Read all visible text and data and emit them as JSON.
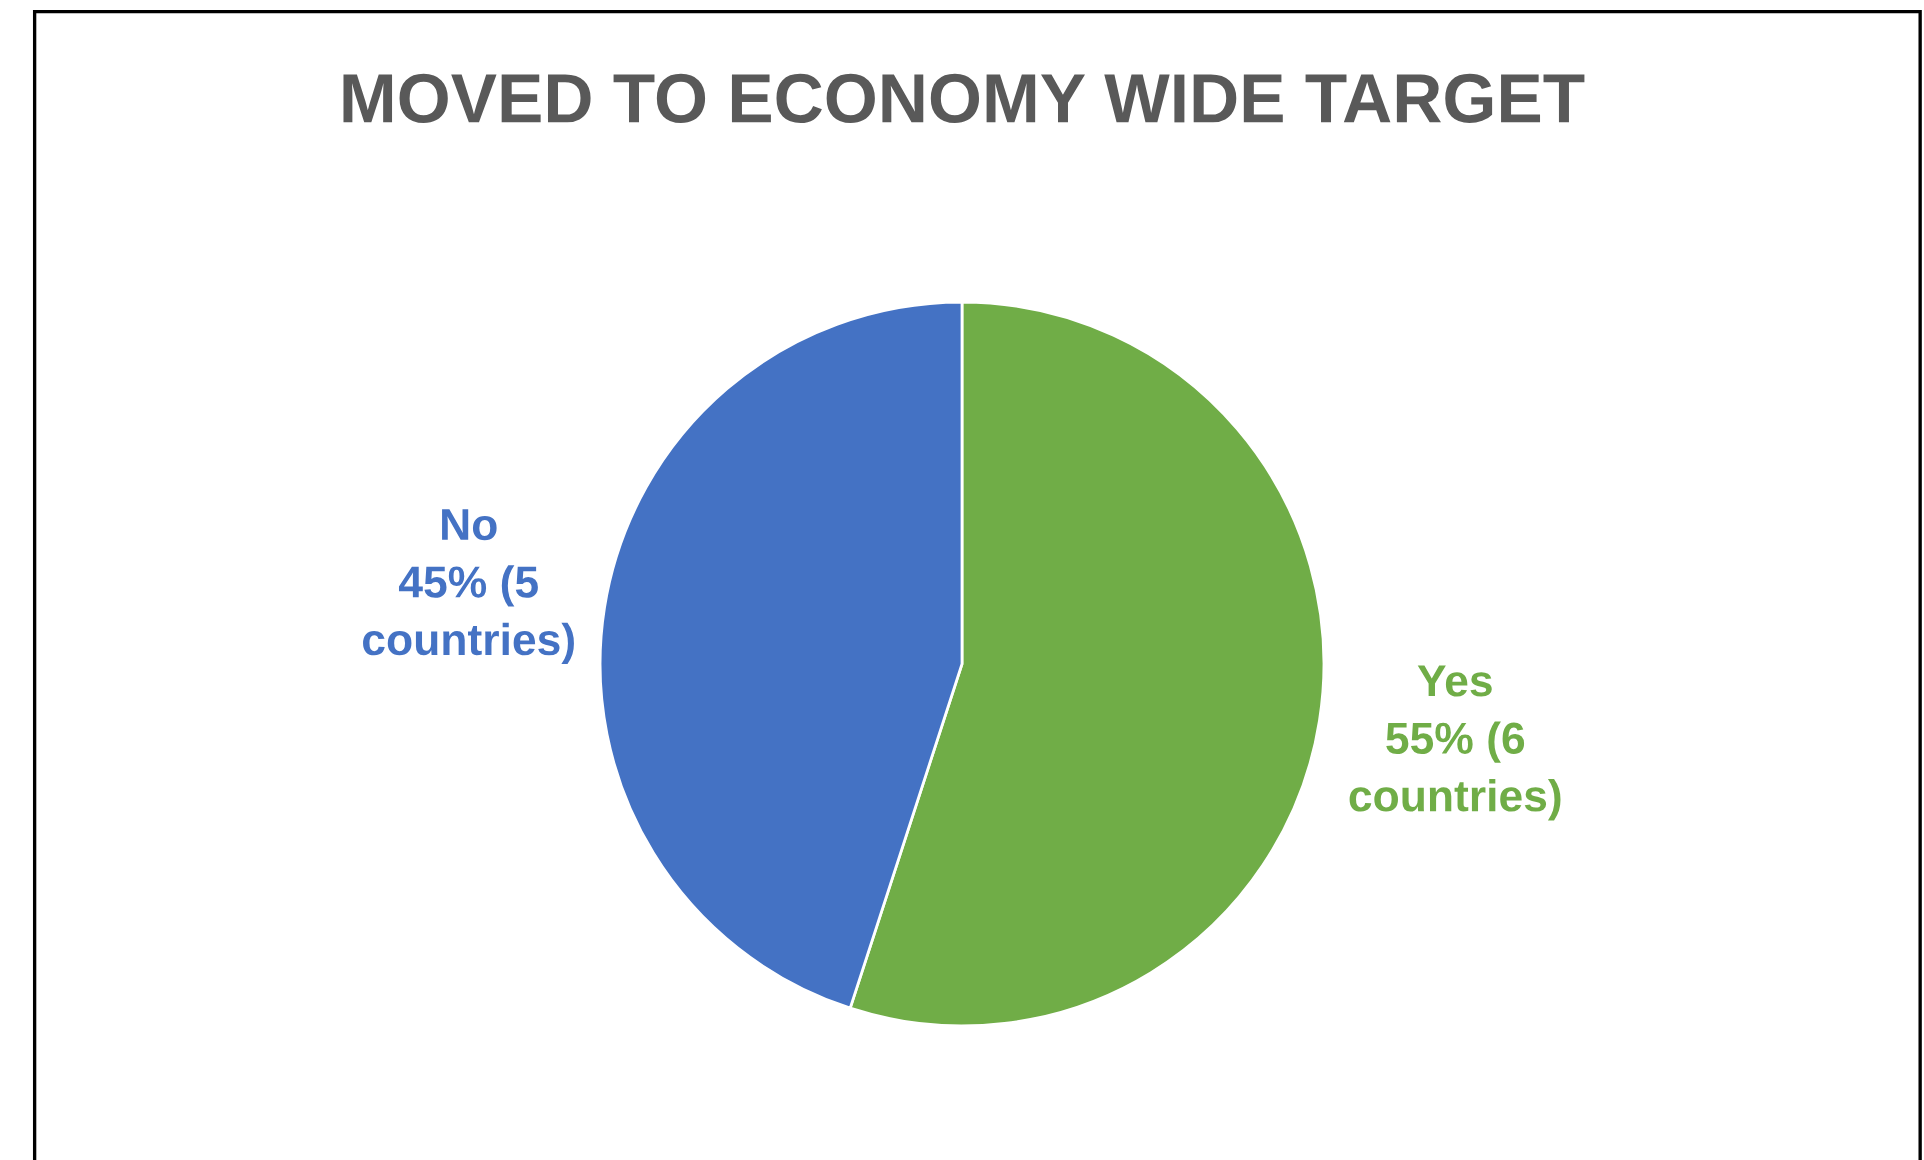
{
  "chart_data": {
    "type": "pie",
    "title": "MOVED TO ECONOMY WIDE TARGET",
    "categories": [
      "Yes",
      "No"
    ],
    "values": [
      55,
      45
    ],
    "colors": [
      "#70ad47",
      "#4472c4"
    ],
    "value_labels": [
      "55% (6\ncountries)",
      "45% (5\ncountries)"
    ],
    "legend": false
  }
}
